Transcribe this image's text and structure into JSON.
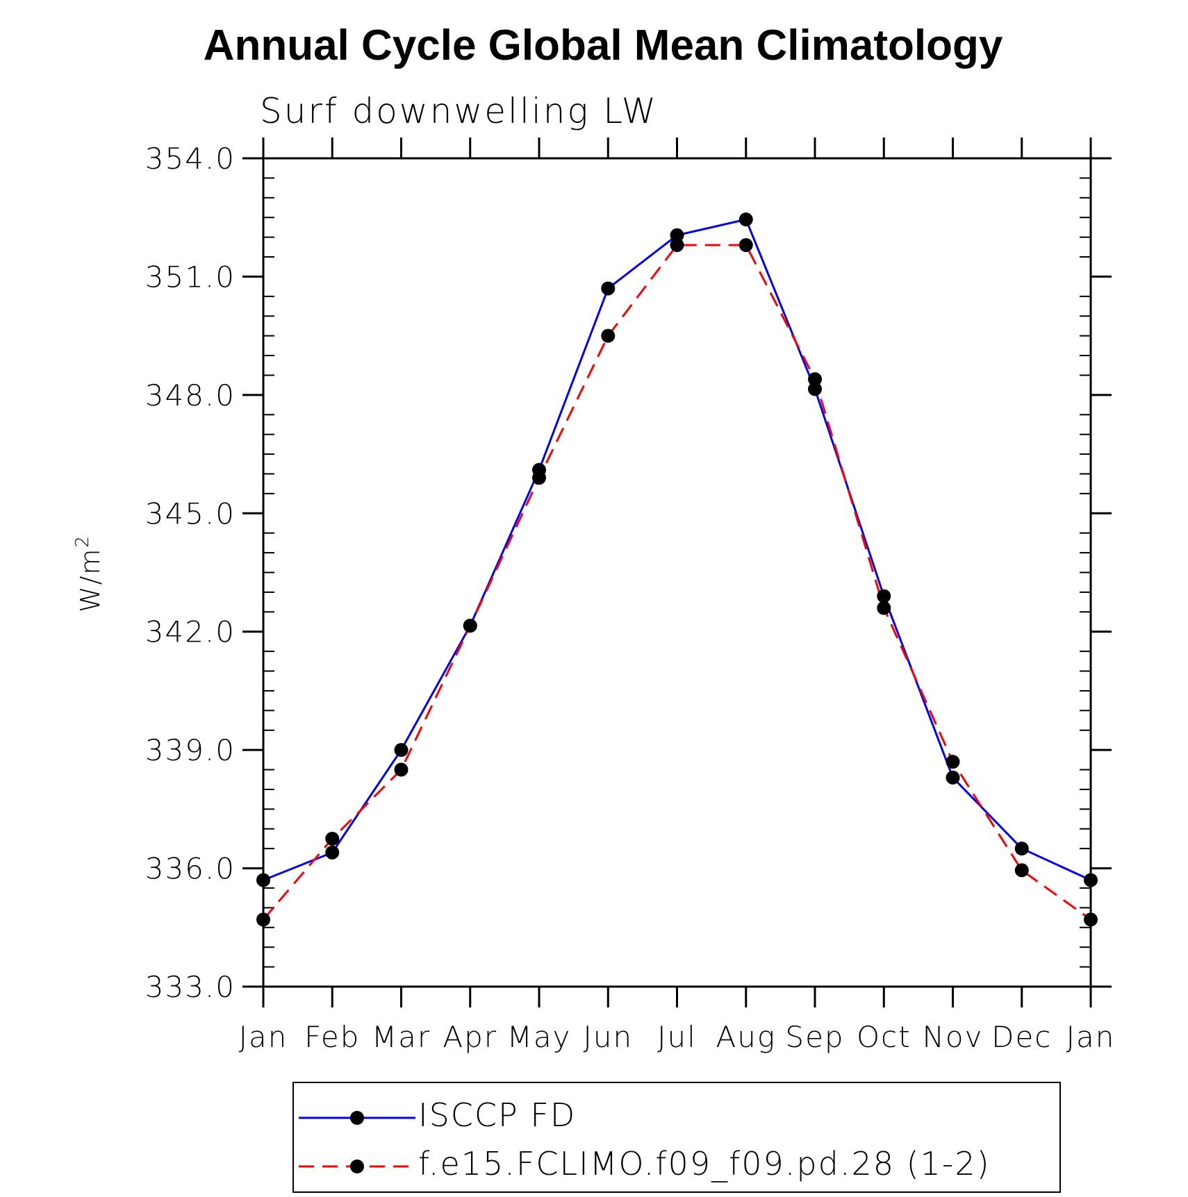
{
  "chart_data": {
    "type": "line",
    "title": "Annual Cycle Global Mean Climatology",
    "subtitle": "Surf downwelling LW",
    "ylabel_base": "W/m",
    "ylabel_sup": "2",
    "categories": [
      "Jan",
      "Feb",
      "Mar",
      "Apr",
      "May",
      "Jun",
      "Jul",
      "Aug",
      "Sep",
      "Oct",
      "Nov",
      "Dec",
      "Jan"
    ],
    "ylim": [
      333.0,
      354.0
    ],
    "yticks": [
      333.0,
      336.0,
      339.0,
      342.0,
      345.0,
      348.0,
      351.0,
      354.0
    ],
    "ytick_labels": [
      "333.0",
      "336.0",
      "339.0",
      "342.0",
      "345.0",
      "348.0",
      "351.0",
      "354.0"
    ],
    "series": [
      {
        "name": "ISCCP FD",
        "color": "#0000ff",
        "dash": "solid",
        "marker": "filled-circle",
        "values": [
          335.7,
          336.4,
          339.0,
          342.15,
          346.1,
          350.7,
          352.05,
          352.45,
          348.15,
          342.9,
          338.3,
          336.5,
          335.7
        ]
      },
      {
        "name": "f.e15.FCLIMO.f09_f09.pd.28 (1-2)",
        "color": "#ff0000",
        "dash": "dashed",
        "marker": "filled-circle",
        "values": [
          334.7,
          336.75,
          338.5,
          342.15,
          345.9,
          349.5,
          351.8,
          351.8,
          348.4,
          342.6,
          338.7,
          335.95,
          334.7
        ]
      }
    ],
    "legend_position": "bottom",
    "grid": false
  }
}
